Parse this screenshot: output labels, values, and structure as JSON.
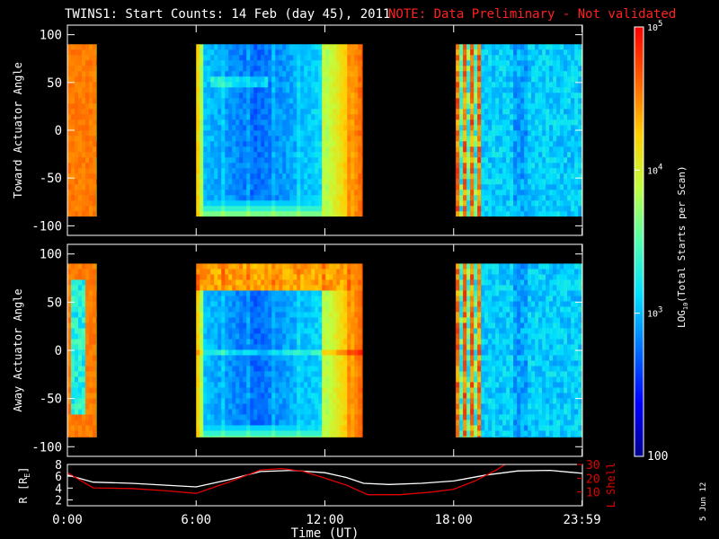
{
  "header": {
    "title": "TWINS1: Start Counts: 14 Feb (day  45), 2011",
    "note": "NOTE: Data Preliminary - Not validated",
    "note_color": "#ff2020",
    "date_stamp": "5 Jun 12"
  },
  "colorbar": {
    "label": "LOG10(Total Starts per Scan)",
    "label_prefix": "LOG",
    "label_sub": "10",
    "label_suffix": "(Total Starts per Scan)",
    "range": [
      100,
      100000
    ],
    "ticks": [
      {
        "value": 100,
        "label": "100"
      },
      {
        "value": 1000,
        "label": "10",
        "exp": "3"
      },
      {
        "value": 10000,
        "label": "10",
        "exp": "4"
      },
      {
        "value": 100000,
        "label": "10",
        "exp": "5"
      }
    ],
    "colors": [
      "#00008f",
      "#0000ff",
      "#0070ff",
      "#00dfff",
      "#50ffaf",
      "#bfff40",
      "#ffcf00",
      "#ff6000",
      "#ff0000"
    ]
  },
  "chart_data": [
    {
      "type": "heatmap",
      "name": "toward",
      "ylabel": "Toward Actuator Angle",
      "xlim": [
        0,
        24
      ],
      "ylim": [
        -110,
        110
      ],
      "yticks": [
        -100,
        -50,
        0,
        50,
        100
      ],
      "ytick_labels": [
        "-100",
        "-50",
        "0",
        "50",
        "100"
      ],
      "angle_range": [
        -90,
        90
      ],
      "segments": [
        {
          "start": 0.0,
          "end": 1.35,
          "profile": "edge"
        },
        {
          "start": 6.0,
          "end": 13.75,
          "profile": "main"
        },
        {
          "start": 18.1,
          "end": 24.0,
          "profile": "late"
        }
      ]
    },
    {
      "type": "heatmap",
      "name": "away",
      "ylabel": "Away Actuator Angle",
      "xlim": [
        0,
        24
      ],
      "ylim": [
        -110,
        110
      ],
      "yticks": [
        -100,
        -50,
        0,
        50,
        100
      ],
      "ytick_labels": [
        "-100",
        "-50",
        "0",
        "50",
        "100"
      ],
      "angle_range": [
        -90,
        90
      ],
      "segments": [
        {
          "start": 0.0,
          "end": 1.35,
          "profile": "edge"
        },
        {
          "start": 6.0,
          "end": 13.75,
          "profile": "main"
        },
        {
          "start": 18.1,
          "end": 24.0,
          "profile": "late"
        }
      ]
    },
    {
      "type": "line",
      "name": "orbit",
      "ylabel_left": "R [RE]",
      "ylabel_left_prefix": "R [R",
      "ylabel_left_sub": "E",
      "ylabel_left_suffix": "]",
      "ylabel_right": "L Shell",
      "xlabel": "Time (UT)",
      "xlim": [
        0,
        24
      ],
      "xticks": [
        0,
        6,
        12,
        18,
        23.983
      ],
      "xtick_labels": [
        "0:00",
        "6:00",
        "12:00",
        "18:00",
        "23:59"
      ],
      "ylim_left": [
        1,
        8
      ],
      "yticks_left": [
        2,
        4,
        6,
        8
      ],
      "ylim_right": [
        0,
        30
      ],
      "yticks_right": [
        10,
        20,
        30
      ],
      "series": [
        {
          "axis": "left",
          "color": "#ffffff",
          "x": [
            0,
            1.2,
            3,
            4.5,
            6,
            7.5,
            9,
            10.5,
            12,
            13,
            13.8,
            15,
            16.5,
            18,
            19.5,
            21,
            22.5,
            24
          ],
          "y": [
            6.2,
            5.0,
            4.8,
            4.5,
            4.2,
            5.4,
            6.8,
            7.0,
            6.6,
            5.8,
            4.8,
            4.6,
            4.8,
            5.2,
            6.2,
            6.9,
            7.0,
            6.5
          ]
        },
        {
          "axis": "right",
          "color": "#e00000",
          "x": [
            0,
            1.2,
            3,
            4.5,
            6,
            7.5,
            9,
            10,
            11,
            12,
            13,
            14,
            15.5,
            17,
            18,
            19,
            20,
            20.6
          ],
          "y": [
            24,
            13,
            12.5,
            11,
            9,
            17,
            26,
            27,
            25,
            20,
            15,
            8,
            8,
            10,
            12,
            18,
            26,
            32
          ]
        }
      ]
    }
  ]
}
